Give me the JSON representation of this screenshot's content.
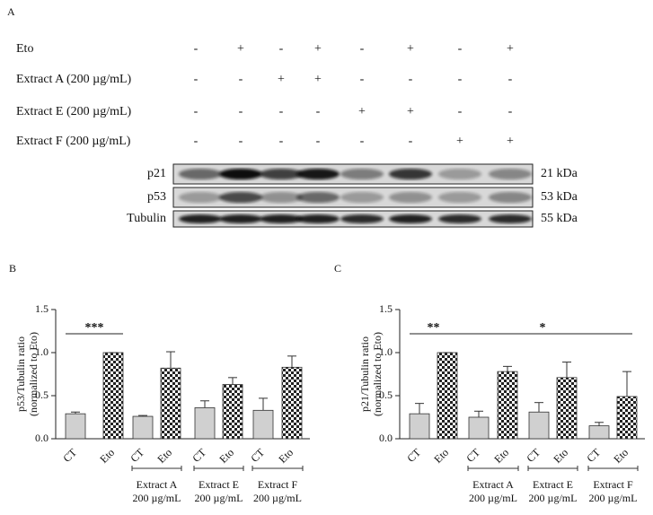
{
  "panels": {
    "a": "A",
    "b": "B",
    "c": "C"
  },
  "blot": {
    "treatments": [
      {
        "label": "Eto",
        "signs": [
          "-",
          "+",
          "-",
          "+",
          "-",
          "+",
          "-",
          "+"
        ]
      },
      {
        "label": "Extract A (200 µg/mL)",
        "signs": [
          "-",
          "-",
          "+",
          "+",
          "-",
          "-",
          "-",
          "-"
        ]
      },
      {
        "label": "Extract E (200 µg/mL)",
        "signs": [
          "-",
          "-",
          "-",
          "-",
          "+",
          "+",
          "-",
          "-"
        ]
      },
      {
        "label": "Extract F (200 µg/mL)",
        "signs": [
          "-",
          "-",
          "-",
          "-",
          "-",
          "-",
          "+",
          "+"
        ]
      }
    ],
    "bands": [
      {
        "label": "p21",
        "size": "21 kDa"
      },
      {
        "label": "p53",
        "size": "53 kDa"
      },
      {
        "label": "Tubulin",
        "size": "55 kDa"
      }
    ]
  },
  "chart_data": [
    {
      "type": "bar",
      "y_label": [
        "p53/Tubulin ratio",
        "(normalized to Eto)"
      ],
      "categories": [
        "CT",
        "Eto",
        "CT",
        "Eto",
        "CT",
        "Eto",
        "CT",
        "Eto"
      ],
      "values": [
        0.29,
        1.0,
        0.26,
        0.82,
        0.36,
        0.63,
        0.33,
        0.83
      ],
      "errors": [
        0.02,
        0,
        0.01,
        0.19,
        0.08,
        0.08,
        0.14,
        0.13
      ],
      "groups": [
        [
          "Extract A",
          "200 µg/mL"
        ],
        [
          "Extract E",
          "200 µg/mL"
        ],
        [
          "Extract F",
          "200 µg/mL"
        ]
      ],
      "significance": [
        "***"
      ],
      "color": "#d0d0d0",
      "ylim": [
        0,
        1.5
      ],
      "yticks": [
        {
          "value": 0,
          "label": "0.0"
        },
        0.5,
        {
          "value": 1,
          "label": "1.0"
        },
        1.5
      ]
    },
    {
      "type": "bar",
      "y_label": [
        "p21/Tubulin ratio",
        "(normalized to Eto)"
      ],
      "categories": [
        "CT",
        "Eto",
        "CT",
        "Eto",
        "CT",
        "Eto",
        "CT",
        "Eto"
      ],
      "values": [
        0.29,
        1.0,
        0.25,
        0.78,
        0.31,
        0.71,
        0.15,
        0.49
      ],
      "errors": [
        0.12,
        0,
        0.07,
        0.06,
        0.11,
        0.18,
        0.04,
        0.29
      ],
      "groups": [
        [
          "Extract A",
          "200 µg/mL"
        ],
        [
          "Extract E",
          "200 µg/mL"
        ],
        [
          "Extract F",
          "200 µg/mL"
        ]
      ],
      "significance": [
        "**",
        "*"
      ],
      "color": "#d0d0d0",
      "ylim": [
        0,
        1.5
      ],
      "yticks": [
        {
          "value": 0,
          "label": "0.0"
        },
        0.5,
        {
          "value": 1,
          "label": "1.0"
        },
        1.5
      ]
    }
  ]
}
